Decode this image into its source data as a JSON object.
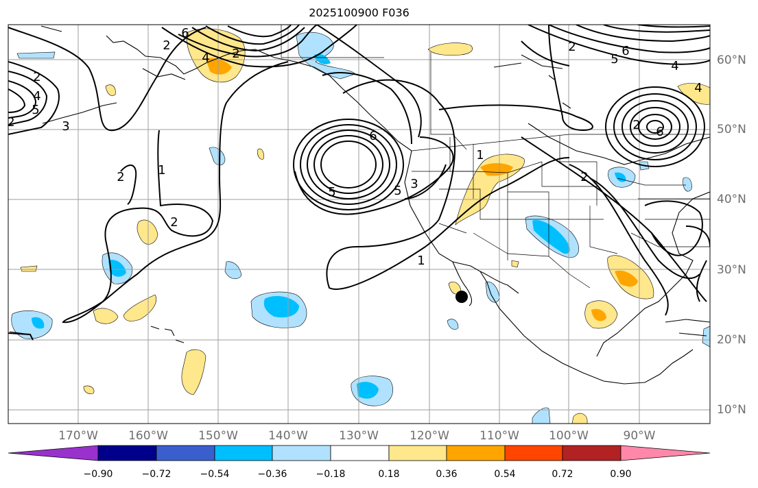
{
  "title": "2025100900 F036",
  "lon_labels": [
    "170°W",
    "160°W",
    "150°W",
    "140°W",
    "130°W",
    "120°W",
    "110°W",
    "100°W",
    "90°W"
  ],
  "lat_labels": [
    "60°N",
    "50°N",
    "40°N",
    "30°N",
    "20°N",
    "10°N"
  ],
  "colorbar": {
    "tick_labels": [
      "−0.90",
      "−0.72",
      "−0.54",
      "−0.36",
      "−0.18",
      "0.18",
      "0.36",
      "0.54",
      "0.72",
      "0.90"
    ],
    "colors": [
      "#9932cc",
      "#00008b",
      "#3a5fcd",
      "#00bfff",
      "#b0e2ff",
      "#ffffff",
      "#ffe78c",
      "#ffa500",
      "#ff4500",
      "#b22222",
      "#ff88aa"
    ]
  },
  "contour_labels": [
    "6",
    "2",
    "4",
    "2",
    "4",
    "5",
    "3",
    "2",
    "1",
    "2",
    "6",
    "5",
    "3",
    "5",
    "1",
    "2",
    "6",
    "4",
    "6",
    "2",
    "5",
    "2",
    "2",
    "2",
    "1",
    "4",
    "2",
    "6",
    "4",
    "1"
  ],
  "marker": {
    "description_color": "#000000"
  }
}
